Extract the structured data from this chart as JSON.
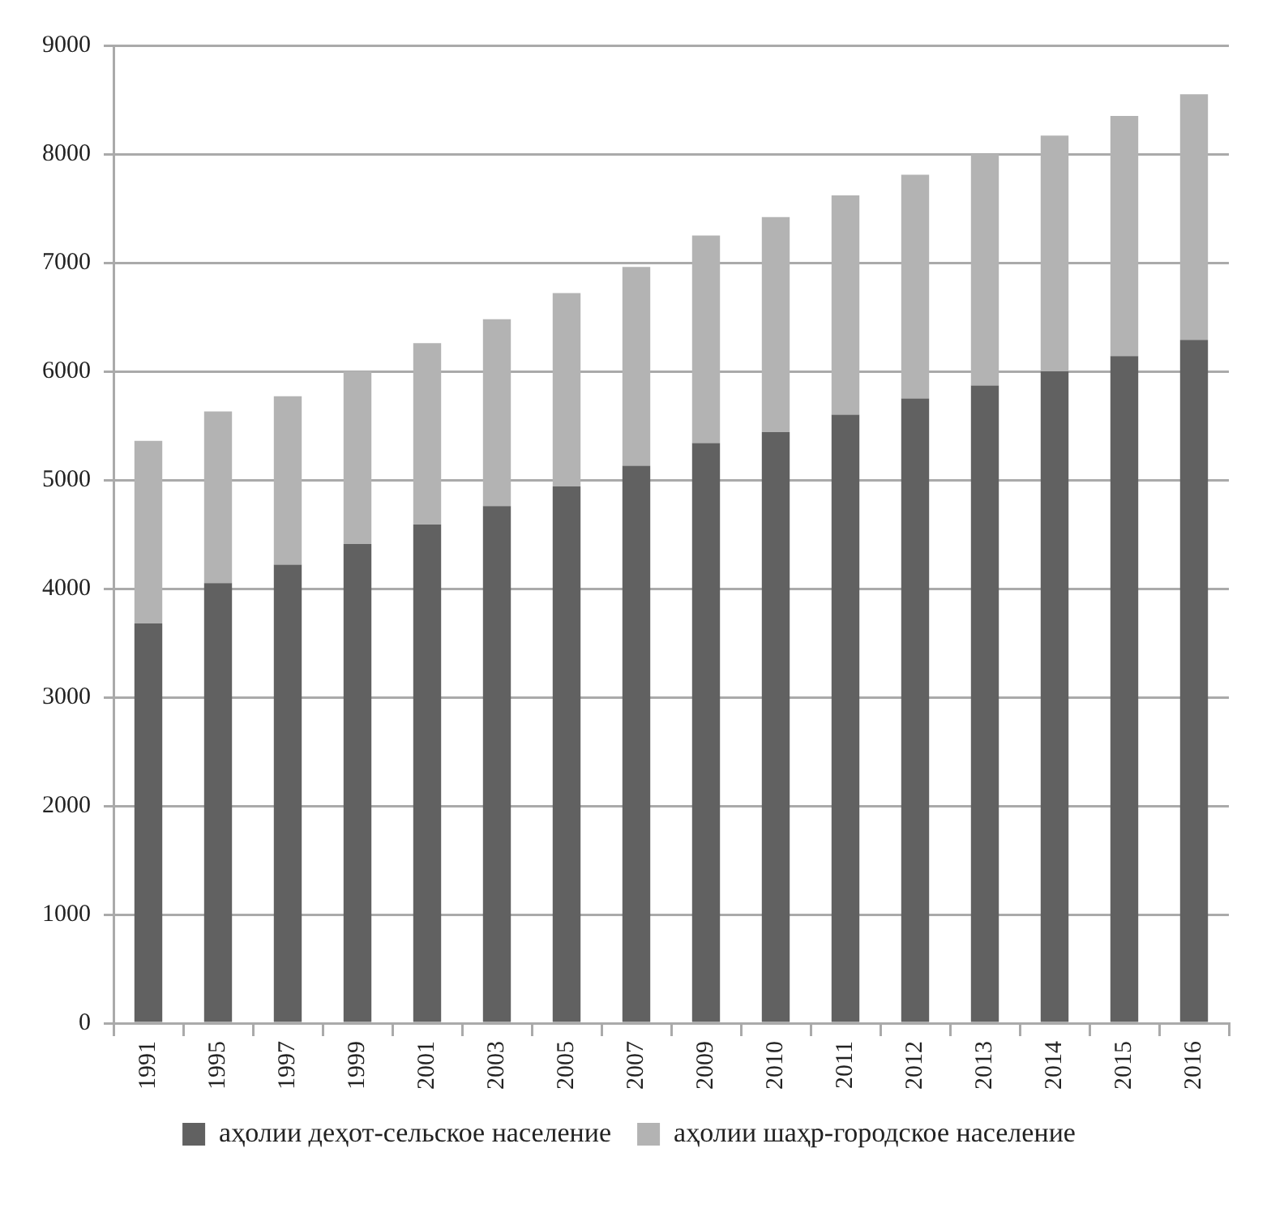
{
  "chart_data": {
    "type": "bar",
    "stacked": true,
    "categories": [
      "1991",
      "1995",
      "1997",
      "1999",
      "2001",
      "2003",
      "2005",
      "2007",
      "2009",
      "2010",
      "2011",
      "2012",
      "2013",
      "2014",
      "2015",
      "2016"
    ],
    "series": [
      {
        "name": "аҳолии деҳот-сельское население",
        "color": "#616161",
        "values": [
          3680,
          4050,
          4220,
          4410,
          4590,
          4760,
          4940,
          5130,
          5340,
          5440,
          5600,
          5750,
          5870,
          6000,
          6140,
          6290
        ]
      },
      {
        "name": "аҳолии шаҳр-городское население",
        "color": "#b3b3b3",
        "values": [
          1680,
          1580,
          1550,
          1590,
          1670,
          1720,
          1780,
          1830,
          1910,
          1980,
          2020,
          2060,
          2130,
          2170,
          2210,
          2260
        ]
      }
    ],
    "ylim": [
      0,
      9000
    ],
    "yticks": [
      0,
      1000,
      2000,
      3000,
      4000,
      5000,
      6000,
      7000,
      8000,
      9000
    ],
    "grid": "y",
    "legend": "bottom"
  }
}
